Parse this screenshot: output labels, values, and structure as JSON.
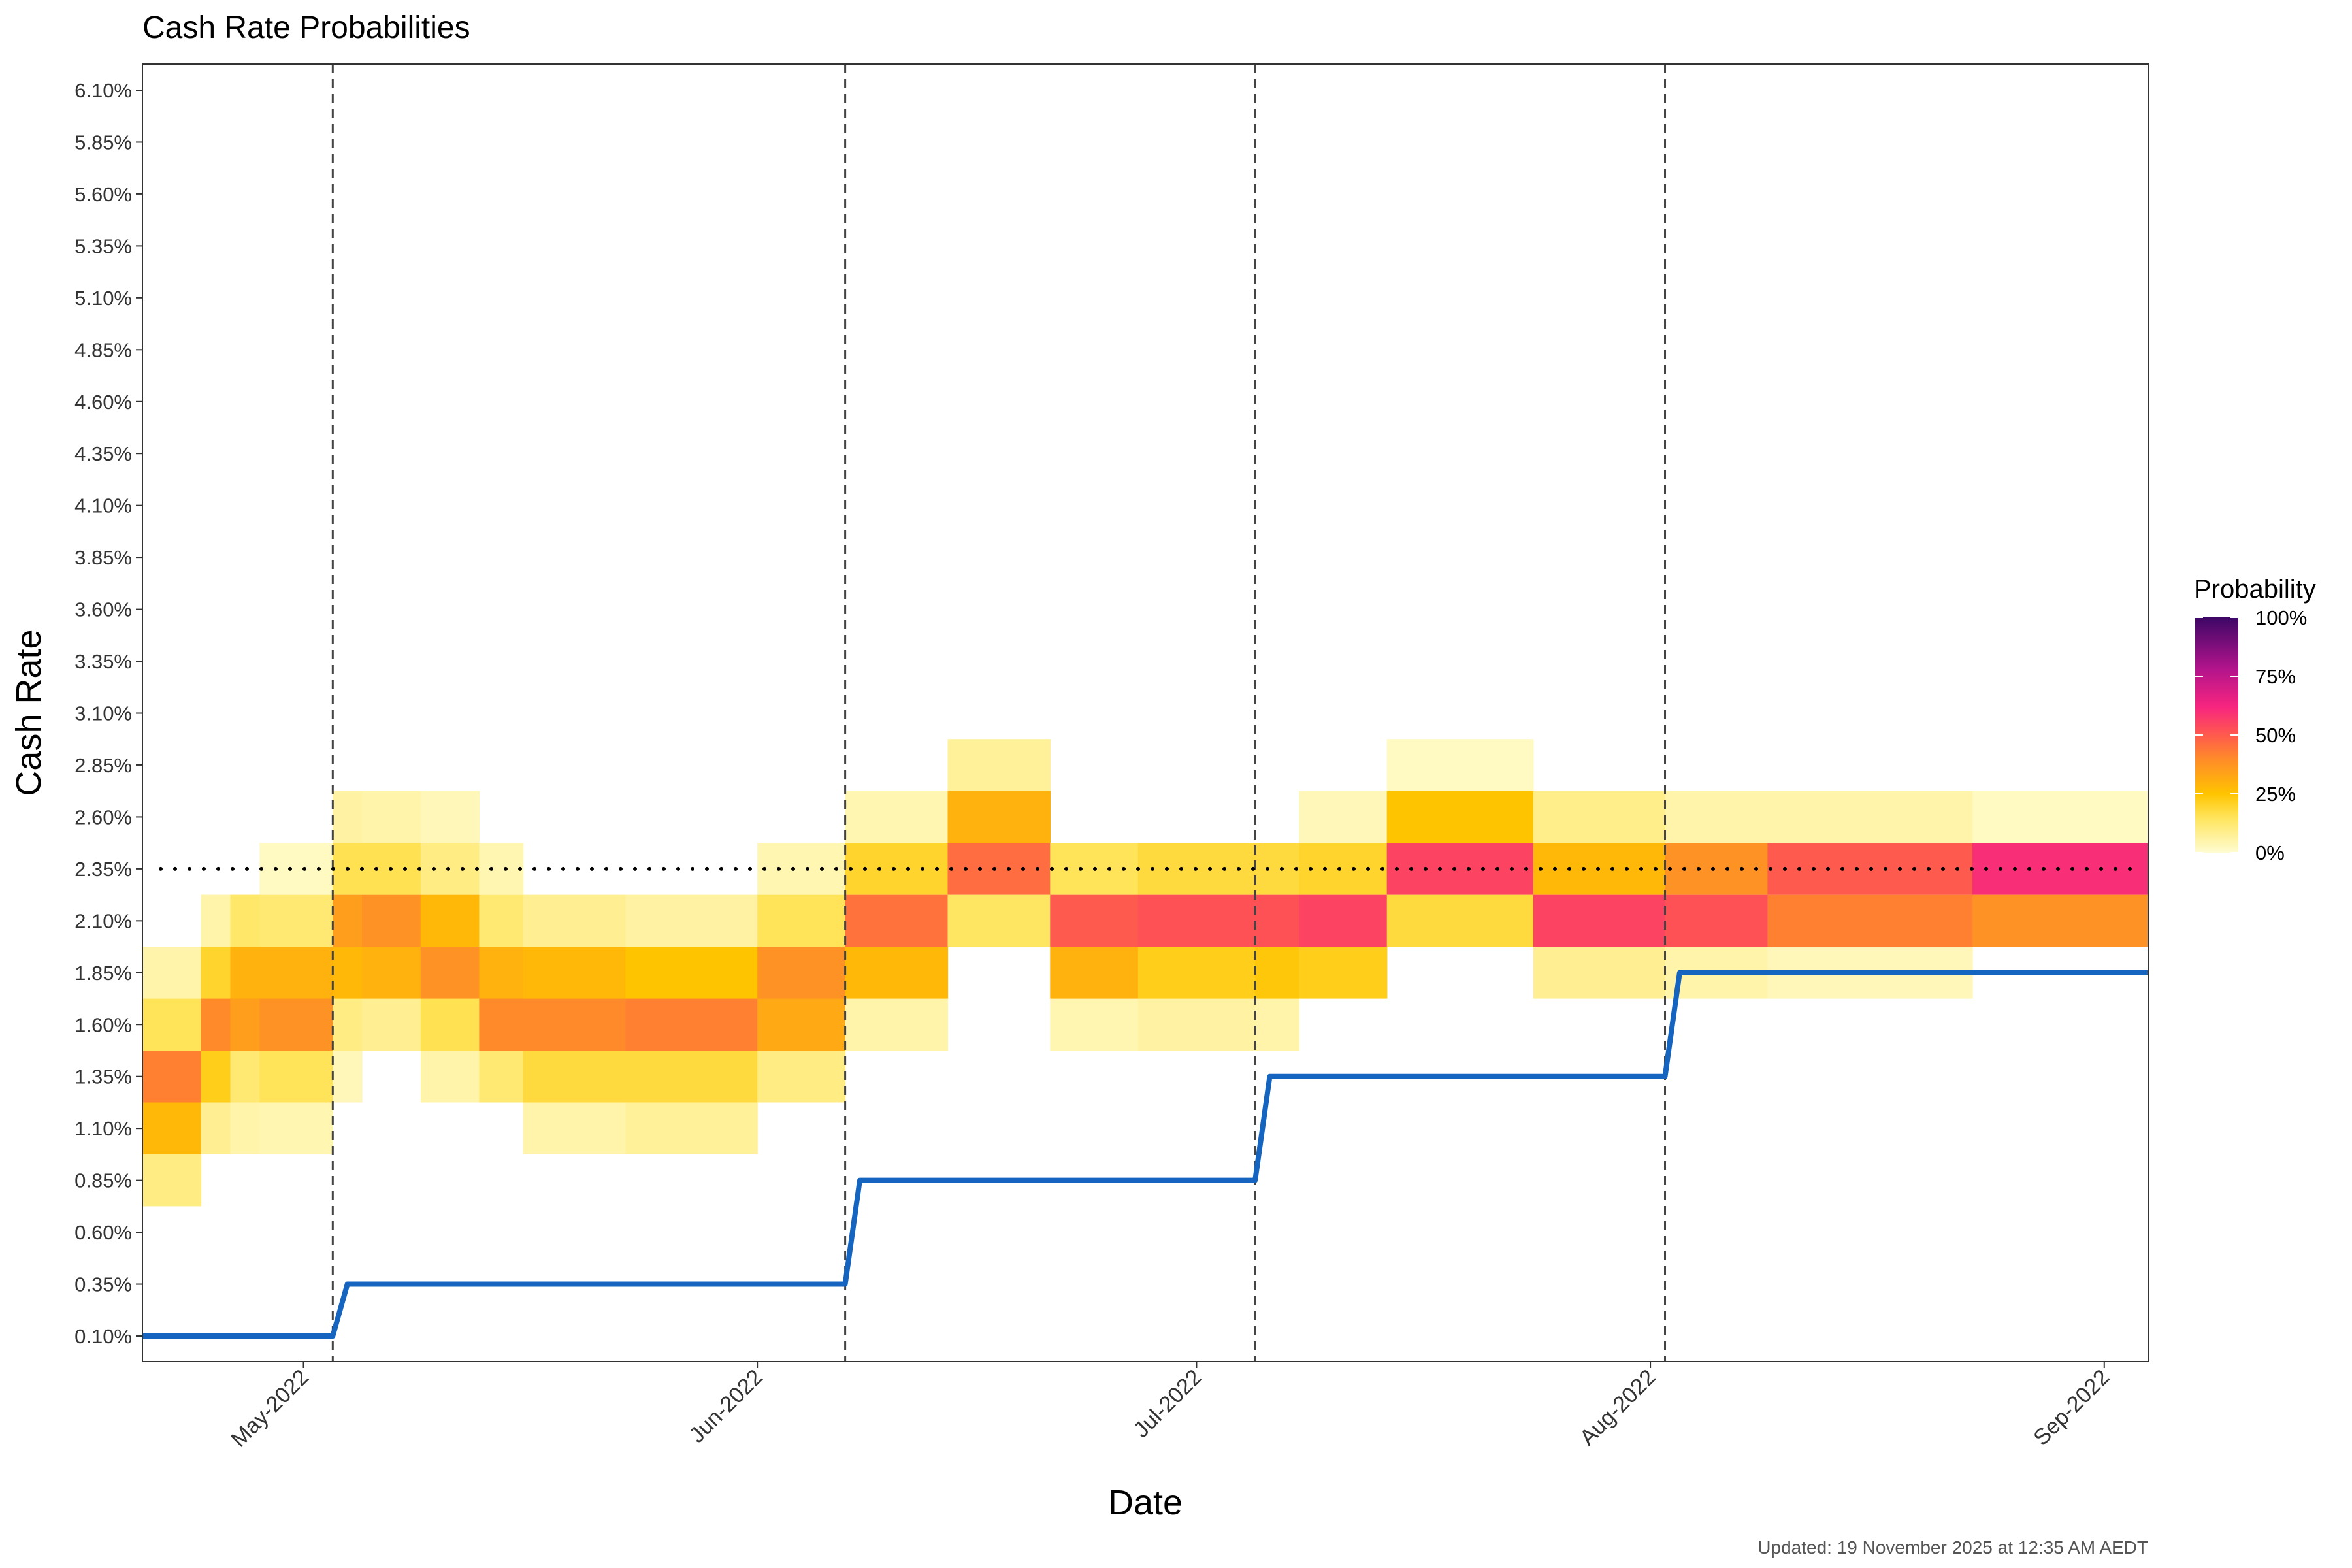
{
  "chart_data": {
    "type": "heatmap",
    "title": "Cash Rate Probabilities",
    "xlabel": "Date",
    "ylabel": "Cash Rate",
    "caption": "Updated: 19 November 2025 at 12:35 AM AEDT",
    "x_range": [
      "2022-04-20",
      "2022-09-04"
    ],
    "y_range": [
      0.1,
      6.1
    ],
    "y_ticks": [
      0.1,
      0.35,
      0.6,
      0.85,
      1.1,
      1.35,
      1.6,
      1.85,
      2.1,
      2.35,
      2.6,
      2.85,
      3.1,
      3.35,
      3.6,
      3.85,
      4.1,
      4.35,
      4.6,
      4.85,
      5.1,
      5.35,
      5.6,
      5.85,
      6.1
    ],
    "y_tick_labels": [
      "0.10%",
      "0.35%",
      "0.60%",
      "0.85%",
      "1.10%",
      "1.35%",
      "1.60%",
      "1.85%",
      "2.10%",
      "2.35%",
      "2.60%",
      "2.85%",
      "3.10%",
      "3.35%",
      "3.60%",
      "3.85%",
      "4.10%",
      "4.35%",
      "4.60%",
      "4.85%",
      "5.10%",
      "5.35%",
      "5.60%",
      "5.85%",
      "6.10%"
    ],
    "x_ticks": [
      {
        "date": "2022-05-01",
        "label": "May-2022"
      },
      {
        "date": "2022-06-01",
        "label": "Jun-2022"
      },
      {
        "date": "2022-07-01",
        "label": "Jul-2022"
      },
      {
        "date": "2022-08-01",
        "label": "Aug-2022"
      },
      {
        "date": "2022-09-01",
        "label": "Sep-2022"
      }
    ],
    "rba_meetings": [
      "2022-05-03",
      "2022-06-07",
      "2022-07-05",
      "2022-08-02"
    ],
    "reference_rate": 2.35,
    "cash_rate_series": [
      {
        "date": "2022-04-20",
        "rate": 0.1
      },
      {
        "date": "2022-05-03",
        "rate": 0.1
      },
      {
        "date": "2022-05-04",
        "rate": 0.35
      },
      {
        "date": "2022-06-07",
        "rate": 0.35
      },
      {
        "date": "2022-06-08",
        "rate": 0.85
      },
      {
        "date": "2022-07-05",
        "rate": 0.85
      },
      {
        "date": "2022-07-06",
        "rate": 1.35
      },
      {
        "date": "2022-08-02",
        "rate": 1.35
      },
      {
        "date": "2022-08-03",
        "rate": 1.85
      },
      {
        "date": "2022-09-04",
        "rate": 1.85
      }
    ],
    "legend": {
      "title": "Probability",
      "labels": [
        "100%",
        "75%",
        "50%",
        "25%",
        "0%"
      ],
      "colors": [
        "#fffcd2",
        "#ffd60a",
        "#ff9f1c",
        "#ff5e4f",
        "#f7257f",
        "#a8128a",
        "#3d0766"
      ]
    },
    "line_color": "#1565c0",
    "heatmap": [
      {
        "from": "2022-04-20",
        "to": "2022-04-24",
        "probs": {
          "0.85": 0.1,
          "1.10": 0.28,
          "1.35": 0.42,
          "1.60": 0.15,
          "1.85": 0.05
        }
      },
      {
        "from": "2022-04-24",
        "to": "2022-04-26",
        "probs": {
          "1.10": 0.08,
          "1.35": 0.22,
          "1.60": 0.4,
          "1.85": 0.2,
          "2.10": 0.05
        }
      },
      {
        "from": "2022-04-26",
        "to": "2022-04-28",
        "probs": {
          "1.10": 0.05,
          "1.35": 0.12,
          "1.60": 0.35,
          "1.85": 0.3,
          "2.10": 0.13
        }
      },
      {
        "from": "2022-04-28",
        "to": "2022-05-03",
        "probs": {
          "1.10": 0.04,
          "1.35": 0.15,
          "1.60": 0.38,
          "1.85": 0.3,
          "2.10": 0.12,
          "2.35": 0.02
        }
      },
      {
        "from": "2022-05-03",
        "to": "2022-05-05",
        "probs": {
          "1.35": 0.03,
          "1.60": 0.1,
          "1.85": 0.28,
          "2.10": 0.35,
          "2.35": 0.16,
          "2.60": 0.06
        }
      },
      {
        "from": "2022-05-05",
        "to": "2022-05-09",
        "probs": {
          "1.60": 0.08,
          "1.85": 0.3,
          "2.10": 0.38,
          "2.35": 0.16,
          "2.60": 0.05
        }
      },
      {
        "from": "2022-05-09",
        "to": "2022-05-13",
        "probs": {
          "1.35": 0.05,
          "1.60": 0.16,
          "1.85": 0.38,
          "2.10": 0.28,
          "2.35": 0.1,
          "2.60": 0.03
        }
      },
      {
        "from": "2022-05-13",
        "to": "2022-05-16",
        "probs": {
          "1.35": 0.12,
          "1.60": 0.4,
          "1.85": 0.3,
          "2.10": 0.12,
          "2.35": 0.04
        }
      },
      {
        "from": "2022-05-16",
        "to": "2022-05-23",
        "probs": {
          "1.10": 0.05,
          "1.35": 0.18,
          "1.60": 0.4,
          "1.85": 0.28,
          "2.10": 0.08
        }
      },
      {
        "from": "2022-05-23",
        "to": "2022-06-01",
        "probs": {
          "1.10": 0.07,
          "1.35": 0.18,
          "1.60": 0.42,
          "1.85": 0.25,
          "2.10": 0.06
        }
      },
      {
        "from": "2022-06-01",
        "to": "2022-06-07",
        "probs": {
          "1.35": 0.1,
          "1.60": 0.32,
          "1.85": 0.38,
          "2.10": 0.15,
          "2.35": 0.04
        }
      },
      {
        "from": "2022-06-07",
        "to": "2022-06-14",
        "probs": {
          "1.60": 0.05,
          "1.85": 0.28,
          "2.10": 0.45,
          "2.35": 0.2,
          "2.60": 0.04
        }
      },
      {
        "from": "2022-06-14",
        "to": "2022-06-21",
        "probs": {
          "2.10": 0.14,
          "2.35": 0.46,
          "2.60": 0.3,
          "2.85": 0.07
        }
      },
      {
        "from": "2022-06-21",
        "to": "2022-06-27",
        "probs": {
          "1.60": 0.04,
          "1.85": 0.3,
          "2.10": 0.5,
          "2.35": 0.15
        }
      },
      {
        "from": "2022-06-27",
        "to": "2022-07-05",
        "probs": {
          "1.60": 0.06,
          "1.85": 0.22,
          "2.10": 0.52,
          "2.35": 0.18
        }
      },
      {
        "from": "2022-07-05",
        "to": "2022-07-08",
        "probs": {
          "1.60": 0.05,
          "1.85": 0.24,
          "2.10": 0.52,
          "2.35": 0.18
        }
      },
      {
        "from": "2022-07-08",
        "to": "2022-07-14",
        "probs": {
          "1.85": 0.22,
          "2.10": 0.55,
          "2.35": 0.2,
          "2.60": 0.03
        }
      },
      {
        "from": "2022-07-14",
        "to": "2022-07-24",
        "probs": {
          "2.10": 0.18,
          "2.35": 0.55,
          "2.60": 0.25,
          "2.85": 0.02
        }
      },
      {
        "from": "2022-07-24",
        "to": "2022-08-02",
        "probs": {
          "1.85": 0.08,
          "2.10": 0.55,
          "2.35": 0.28,
          "2.60": 0.09
        }
      },
      {
        "from": "2022-08-02",
        "to": "2022-08-09",
        "probs": {
          "1.85": 0.05,
          "2.10": 0.52,
          "2.35": 0.38,
          "2.60": 0.05
        }
      },
      {
        "from": "2022-08-09",
        "to": "2022-08-23",
        "probs": {
          "1.85": 0.03,
          "2.10": 0.42,
          "2.35": 0.5,
          "2.60": 0.05
        }
      },
      {
        "from": "2022-08-23",
        "to": "2022-09-04",
        "probs": {
          "2.10": 0.38,
          "2.35": 0.6,
          "2.60": 0.02
        }
      }
    ]
  }
}
